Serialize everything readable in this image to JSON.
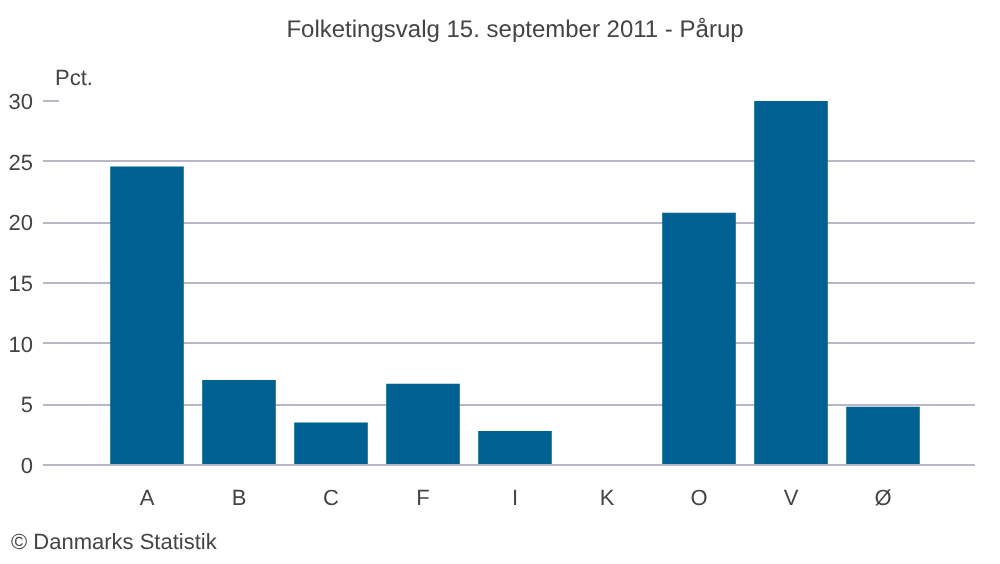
{
  "chart_data": {
    "type": "bar",
    "title": "Folketingsvalg 15. september 2011 - Pårup",
    "ylabel": "Pct.",
    "categories": [
      "A",
      "B",
      "C",
      "F",
      "I",
      "K",
      "O",
      "V",
      "Ø"
    ],
    "values": [
      24.6,
      7.0,
      3.5,
      6.7,
      2.8,
      0,
      20.8,
      30.0,
      4.8
    ],
    "color": "#006192",
    "ylim": [
      0,
      30
    ],
    "yticks": [
      0,
      5,
      10,
      15,
      20,
      25,
      30
    ],
    "grid": "y",
    "annotations": [
      "© Danmarks Statistik"
    ]
  }
}
